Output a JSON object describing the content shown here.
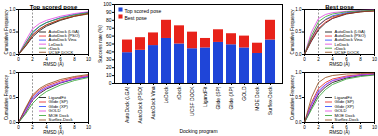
{
  "chart_data": [
    {
      "type": "line",
      "title": "Top scored pose",
      "x_label": "RMSD (Å)",
      "y_label": "Cumulative Frequency",
      "x": [
        0,
        1,
        2,
        3,
        4,
        6,
        8,
        10
      ],
      "xlim": [
        0,
        10
      ],
      "xticks": [
        0,
        2,
        4,
        6,
        8,
        10
      ],
      "ylim": [
        0,
        1
      ],
      "yticks": [
        {
          "value": 0,
          "label": "0.0"
        },
        {
          "value": 0.5,
          "label": "0.5"
        },
        {
          "value": 1,
          "label": "1.0"
        }
      ],
      "vline": 2,
      "legend": "lower right",
      "series": [
        {
          "name": "AutoDock (LGA)",
          "color": "#000000",
          "values": [
            0,
            0.18,
            0.39,
            0.53,
            0.63,
            0.76,
            0.85,
            0.91
          ]
        },
        {
          "name": "AutoDock (PSO)",
          "color": "#e41a1c",
          "values": [
            0,
            0.2,
            0.42,
            0.56,
            0.66,
            0.78,
            0.86,
            0.92
          ]
        },
        {
          "name": "AutoDock Vina",
          "color": "#1f3fff",
          "values": [
            0,
            0.24,
            0.48,
            0.62,
            0.71,
            0.82,
            0.89,
            0.94
          ]
        },
        {
          "name": "LeDock",
          "color": "#e040e0",
          "values": [
            0,
            0.3,
            0.57,
            0.69,
            0.76,
            0.85,
            0.91,
            0.95
          ]
        },
        {
          "name": "rDock",
          "color": "#2ca02c",
          "values": [
            0,
            0.25,
            0.5,
            0.63,
            0.71,
            0.81,
            0.88,
            0.93
          ]
        },
        {
          "name": "UCSF DOCK",
          "color": "#8b4513",
          "values": [
            0,
            0.2,
            0.44,
            0.57,
            0.66,
            0.77,
            0.85,
            0.9
          ]
        }
      ]
    },
    {
      "type": "line",
      "x_label": "RMSD (Å)",
      "y_label": "Cumulative Frequency",
      "x": [
        0,
        1,
        2,
        3,
        4,
        6,
        8,
        10
      ],
      "xlim": [
        0,
        10
      ],
      "xticks": [
        0,
        2,
        4,
        6,
        8,
        10
      ],
      "ylim": [
        0,
        1
      ],
      "yticks": [
        {
          "value": 0,
          "label": "0.0"
        },
        {
          "value": 0.5,
          "label": "0.5"
        },
        {
          "value": 1,
          "label": "1.0"
        }
      ],
      "vline": 2,
      "legend": "lower right",
      "series": [
        {
          "name": "LigandFit",
          "color": "#000000",
          "values": [
            0,
            0.2,
            0.45,
            0.58,
            0.67,
            0.79,
            0.87,
            0.92
          ]
        },
        {
          "name": "Glide (SP)",
          "color": "#e41a1c",
          "values": [
            0,
            0.27,
            0.52,
            0.65,
            0.73,
            0.83,
            0.9,
            0.94
          ]
        },
        {
          "name": "Glide (XP)",
          "color": "#1f3fff",
          "values": [
            0,
            0.25,
            0.49,
            0.62,
            0.7,
            0.8,
            0.87,
            0.92
          ]
        },
        {
          "name": "GOLD",
          "color": "#e040e0",
          "values": [
            0,
            0.22,
            0.45,
            0.6,
            0.69,
            0.8,
            0.88,
            0.93
          ]
        },
        {
          "name": "MOE Dock",
          "color": "#2ca02c",
          "values": [
            0,
            0.17,
            0.38,
            0.52,
            0.62,
            0.75,
            0.84,
            0.9
          ]
        },
        {
          "name": "Surflex-Dock",
          "color": "#8b4513",
          "values": [
            0,
            0.29,
            0.55,
            0.68,
            0.76,
            0.86,
            0.92,
            0.96
          ]
        }
      ]
    },
    {
      "type": "bar",
      "stacked": true,
      "y_label": "Success rate (%)",
      "x_label": "Docking program",
      "legend": "upper left",
      "categories": [
        "AutoDock (LGA)",
        "AutoDock (PSO)",
        "AutoDock Vina",
        "LeDock",
        "rDock",
        "UCSF DOCK",
        "LigandFit",
        "Glide (SP)",
        "Glide (XP)",
        "GOLD",
        "MOE Dock",
        "Surflex-Dock"
      ],
      "ylim": [
        0,
        100
      ],
      "yticks": [
        0,
        10,
        20,
        30,
        40,
        50,
        60,
        70,
        80,
        90,
        100
      ],
      "series": [
        {
          "name": "Top scored pose",
          "color": "#1f45d8",
          "values": [
            39,
            42,
            48,
            57,
            50,
            44,
            45,
            52,
            49,
            45,
            38,
            55
          ]
        },
        {
          "name": "Best pose",
          "color": "#e8221a",
          "values": [
            16,
            16,
            16,
            23,
            23,
            21,
            12,
            16,
            14,
            15,
            13,
            25
          ]
        }
      ]
    },
    {
      "type": "line",
      "title": "Best pose",
      "x_label": "RMSD (Å)",
      "y_label": "Cumulative Frequency",
      "x": [
        0,
        1,
        2,
        3,
        4,
        6,
        8,
        10
      ],
      "xlim": [
        0,
        10
      ],
      "xticks": [
        0,
        2,
        4,
        6,
        8,
        10
      ],
      "ylim": [
        0,
        1
      ],
      "yticks": [
        {
          "value": 0,
          "label": "0.0"
        },
        {
          "value": 0.5,
          "label": "0.5"
        },
        {
          "value": 1,
          "label": "1.0"
        }
      ],
      "vline": 2,
      "legend": "lower right",
      "series": [
        {
          "name": "AutoDock (LGA)",
          "color": "#000000",
          "values": [
            0,
            0.3,
            0.55,
            0.7,
            0.8,
            0.9,
            0.95,
            0.97
          ]
        },
        {
          "name": "AutoDock (PSO)",
          "color": "#e41a1c",
          "values": [
            0,
            0.32,
            0.58,
            0.72,
            0.81,
            0.91,
            0.95,
            0.97
          ]
        },
        {
          "name": "AutoDock Vina",
          "color": "#1f3fff",
          "values": [
            0,
            0.36,
            0.64,
            0.78,
            0.86,
            0.93,
            0.96,
            0.98
          ]
        },
        {
          "name": "LeDock",
          "color": "#e040e0",
          "values": [
            0,
            0.5,
            0.8,
            0.89,
            0.93,
            0.96,
            0.98,
            0.99
          ]
        },
        {
          "name": "rDock",
          "color": "#2ca02c",
          "values": [
            0,
            0.42,
            0.73,
            0.84,
            0.9,
            0.95,
            0.97,
            0.98
          ]
        },
        {
          "name": "UCSF DOCK",
          "color": "#8b4513",
          "values": [
            0,
            0.36,
            0.65,
            0.77,
            0.84,
            0.91,
            0.95,
            0.97
          ]
        }
      ]
    },
    {
      "type": "line",
      "x_label": "RMSD (Å)",
      "y_label": "Cumulative Frequency",
      "x": [
        0,
        1,
        2,
        3,
        4,
        6,
        8,
        10
      ],
      "xlim": [
        0,
        10
      ],
      "xticks": [
        0,
        2,
        4,
        6,
        8,
        10
      ],
      "ylim": [
        0,
        1
      ],
      "yticks": [
        {
          "value": 0,
          "label": "0.0"
        },
        {
          "value": 0.5,
          "label": "0.5"
        },
        {
          "value": 1,
          "label": "1.0"
        }
      ],
      "vline": 2,
      "legend": "lower right",
      "series": [
        {
          "name": "LigandFit",
          "color": "#000000",
          "values": [
            0,
            0.3,
            0.57,
            0.71,
            0.8,
            0.89,
            0.94,
            0.96
          ]
        },
        {
          "name": "Glide (SP)",
          "color": "#e41a1c",
          "values": [
            0,
            0.4,
            0.68,
            0.8,
            0.87,
            0.93,
            0.96,
            0.98
          ]
        },
        {
          "name": "Glide (XP)",
          "color": "#1f3fff",
          "values": [
            0,
            0.36,
            0.63,
            0.76,
            0.84,
            0.91,
            0.95,
            0.97
          ]
        },
        {
          "name": "GOLD",
          "color": "#e040e0",
          "values": [
            0,
            0.33,
            0.6,
            0.75,
            0.83,
            0.91,
            0.95,
            0.97
          ]
        },
        {
          "name": "MOE Dock",
          "color": "#2ca02c",
          "values": [
            0,
            0.26,
            0.51,
            0.66,
            0.76,
            0.87,
            0.92,
            0.95
          ]
        },
        {
          "name": "Surflex-Dock",
          "color": "#8b4513",
          "values": [
            0,
            0.5,
            0.8,
            0.9,
            0.94,
            0.97,
            0.98,
            0.99
          ]
        }
      ]
    }
  ]
}
